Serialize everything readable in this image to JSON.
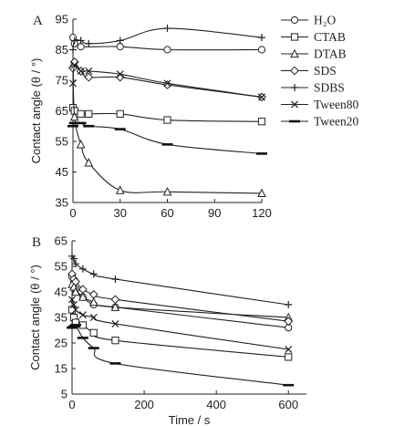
{
  "chart_data": [
    {
      "panel_label": "A",
      "type": "line",
      "xlabel": "",
      "ylabel": "Contact angle (θ / °)",
      "xlim": [
        0,
        120
      ],
      "ylim": [
        35,
        95
      ],
      "xticks": [
        "0",
        "30",
        "60",
        "90",
        "120"
      ],
      "yticks": [
        "35",
        "45",
        "55",
        "65",
        "75",
        "85",
        "95"
      ],
      "legend_position": "right",
      "series": [
        {
          "name": "H₂O",
          "marker": "circle",
          "x": [
            0,
            1,
            5,
            30,
            60,
            120
          ],
          "y": [
            89,
            87,
            86,
            86,
            85,
            85
          ]
        },
        {
          "name": "CTAB",
          "marker": "square",
          "x": [
            0,
            1,
            5,
            10,
            30,
            60,
            120
          ],
          "y": [
            66,
            65,
            64,
            64,
            64,
            62,
            61.5
          ]
        },
        {
          "name": "DTAB",
          "marker": "triangle",
          "x": [
            0,
            1,
            5,
            10,
            30,
            60,
            120
          ],
          "y": [
            80,
            63,
            54,
            48,
            39,
            38.5,
            38
          ]
        },
        {
          "name": "SDS",
          "marker": "diamond",
          "x": [
            0,
            1,
            5,
            10,
            30,
            60,
            120
          ],
          "y": [
            79,
            81,
            78,
            76,
            76,
            73.5,
            69.5
          ]
        },
        {
          "name": "SDBS",
          "marker": "plus",
          "x": [
            0,
            1,
            5,
            10,
            30,
            60,
            120
          ],
          "y": [
            85,
            88,
            88,
            87,
            88,
            92,
            89
          ]
        },
        {
          "name": "Tween80",
          "marker": "cross",
          "x": [
            0,
            1,
            5,
            10,
            30,
            60,
            120
          ],
          "y": [
            74,
            80,
            78,
            78,
            77,
            74,
            69.5
          ]
        },
        {
          "name": "Tween20",
          "marker": "dash",
          "x": [
            0,
            1,
            5,
            10,
            30,
            60,
            120
          ],
          "y": [
            60,
            61,
            61,
            60,
            59,
            54,
            51
          ]
        }
      ]
    },
    {
      "panel_label": "B",
      "type": "line",
      "xlabel": "Time / s",
      "ylabel": "Contact angle (θ / °)",
      "xlim": [
        0,
        650
      ],
      "ylim": [
        5,
        65
      ],
      "xticks": [
        "0",
        "200",
        "400",
        "600"
      ],
      "yticks": [
        "5",
        "15",
        "25",
        "35",
        "45",
        "55",
        "65"
      ],
      "series": [
        {
          "name": "H₂O",
          "marker": "circle",
          "x": [
            0,
            5,
            10,
            30,
            60,
            120,
            600
          ],
          "y": [
            51,
            49,
            46,
            43,
            40,
            39,
            31
          ]
        },
        {
          "name": "CTAB",
          "marker": "square",
          "x": [
            0,
            5,
            10,
            30,
            60,
            120,
            600
          ],
          "y": [
            38,
            35,
            33,
            32,
            29,
            26,
            19.5
          ]
        },
        {
          "name": "DTAB",
          "marker": "triangle",
          "x": [
            0,
            5,
            10,
            30,
            60,
            120,
            600
          ],
          "y": [
            48,
            47,
            45,
            43,
            41,
            39,
            35
          ]
        },
        {
          "name": "SDS",
          "marker": "diamond",
          "x": [
            0,
            5,
            10,
            30,
            60,
            120,
            600
          ],
          "y": [
            52,
            50,
            49,
            46,
            44,
            42,
            33.5
          ]
        },
        {
          "name": "SDBS",
          "marker": "plus",
          "x": [
            0,
            5,
            10,
            30,
            60,
            120,
            600
          ],
          "y": [
            59,
            58,
            56,
            54,
            52,
            50,
            40
          ]
        },
        {
          "name": "Tween80",
          "marker": "cross",
          "x": [
            0,
            5,
            10,
            30,
            60,
            120,
            600
          ],
          "y": [
            42,
            40,
            38,
            36,
            35,
            32.5,
            22.5
          ]
        },
        {
          "name": "Tween20",
          "marker": "dash",
          "x": [
            0,
            5,
            10,
            30,
            60,
            120,
            600
          ],
          "y": [
            31,
            31.5,
            32,
            27,
            23,
            17,
            8.5
          ]
        }
      ]
    }
  ]
}
